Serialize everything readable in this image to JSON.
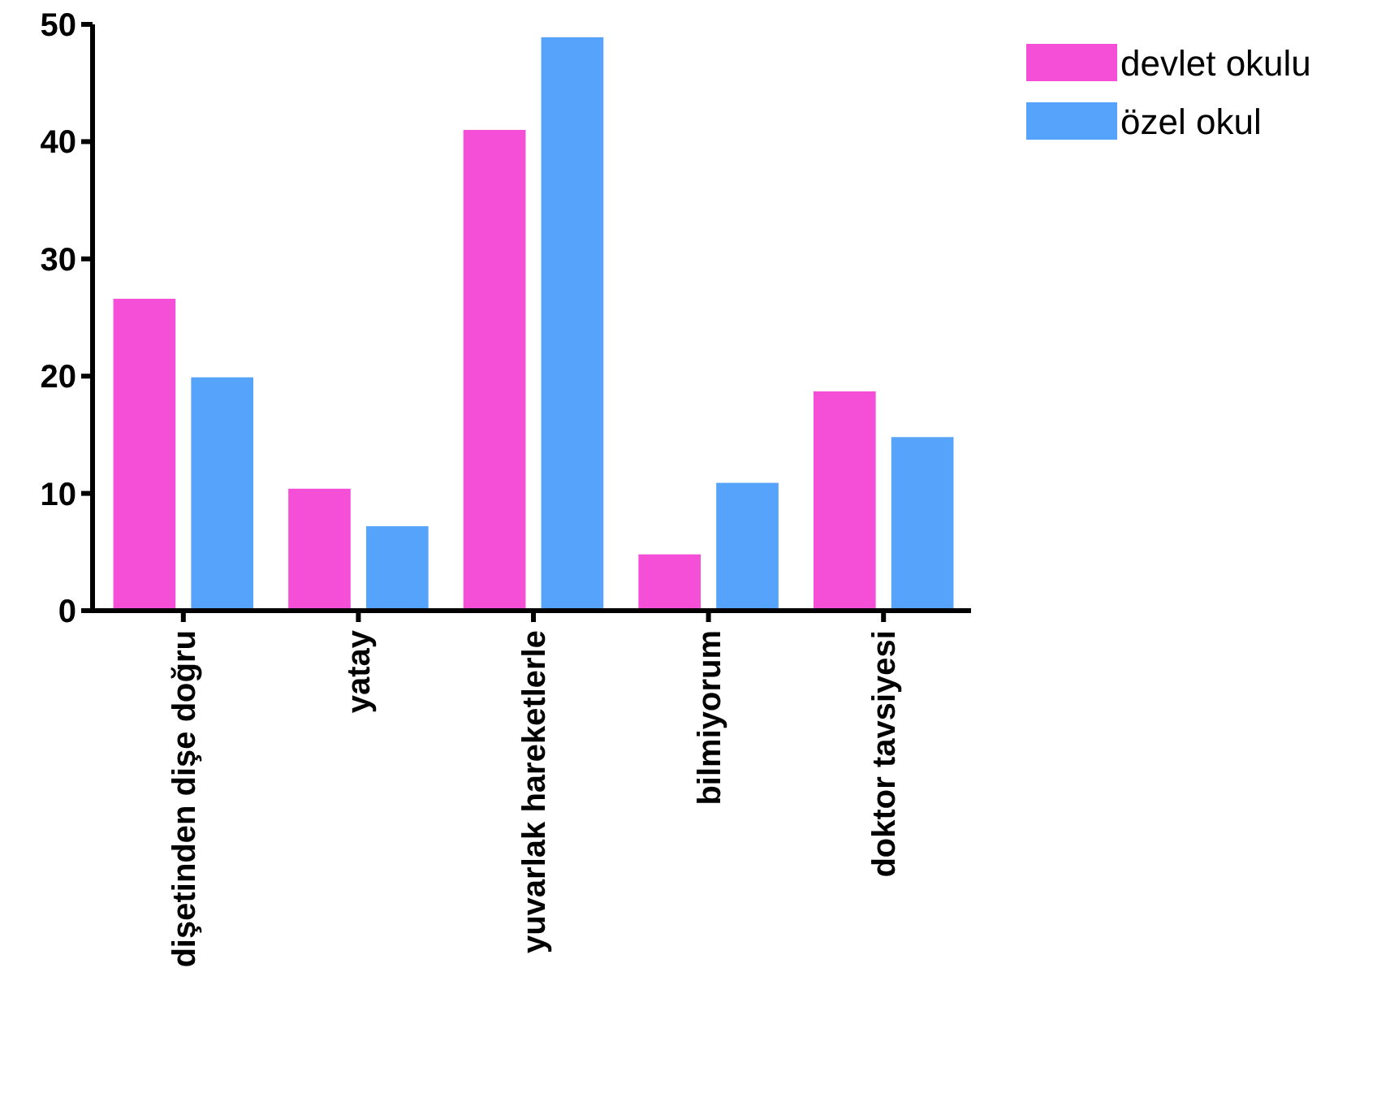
{
  "chart_data": {
    "type": "bar",
    "categories": [
      "dişetinden dişe doğru",
      "yatay",
      "yuvarlak hareketlerle",
      "bilmiyorum",
      "doktor tavsiyesi"
    ],
    "series": [
      {
        "name": "devlet okulu",
        "color": "#f54fd8",
        "values": [
          26.6,
          10.4,
          41,
          4.8,
          18.7
        ]
      },
      {
        "name": "özel okul",
        "color": "#55a3fb",
        "values": [
          19.9,
          7.2,
          48.9,
          10.9,
          14.8
        ]
      }
    ],
    "ylim": [
      0,
      50
    ],
    "yticks": [
      0,
      10,
      20,
      30,
      40,
      50
    ],
    "legend": "top right",
    "grid": false
  }
}
